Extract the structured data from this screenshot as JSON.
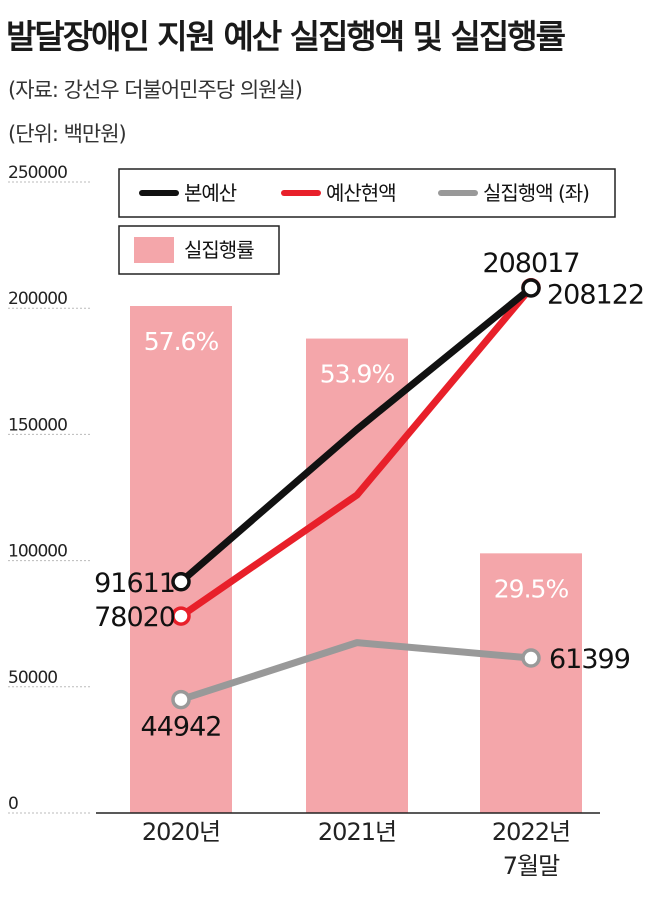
{
  "header": {
    "title": "발달장애인 지원 예산 실집행액 및 실집행률",
    "source": "(자료: 강선우 더불어민주당 의원실)",
    "unit": "(단위: 백만원)"
  },
  "colors": {
    "budget": "#111111",
    "current_budget": "#e8202a",
    "execution": "#999999",
    "rate_bar": "#f4a6aa"
  },
  "chart_data": {
    "type": "bar",
    "categories": [
      "2020년",
      "2021년",
      "2022년 7월말"
    ],
    "ylim": [
      0,
      250000
    ],
    "yticks": [
      0,
      50000,
      100000,
      150000,
      200000,
      250000
    ],
    "ytick_labels": [
      "0",
      "50000",
      "100000",
      "150000",
      "200000",
      "250000"
    ],
    "legend": {
      "placement": "top",
      "line_entries": [
        "본예산",
        "예산현액",
        "실집행액 (좌)"
      ],
      "bar_entry": "실집행률"
    },
    "series": [
      {
        "name": "본예산",
        "type": "line",
        "values": [
          91611,
          152000,
          208017
        ],
        "labels": [
          "91611",
          "",
          "208017"
        ],
        "color": "#111111"
      },
      {
        "name": "예산현액",
        "type": "line",
        "values": [
          78020,
          126000,
          208122
        ],
        "labels": [
          "78020",
          "",
          "208122"
        ],
        "color": "#e8202a"
      },
      {
        "name": "실집행액 (좌)",
        "type": "line",
        "values": [
          44942,
          67500,
          61399
        ],
        "labels": [
          "44942",
          "",
          "61399"
        ],
        "color": "#999999"
      },
      {
        "name": "실집행률",
        "type": "bar",
        "values": [
          57.6,
          53.9,
          29.5
        ],
        "labels": [
          "57.6%",
          "53.9%",
          "29.5%"
        ],
        "color": "#f4a6aa"
      }
    ]
  }
}
